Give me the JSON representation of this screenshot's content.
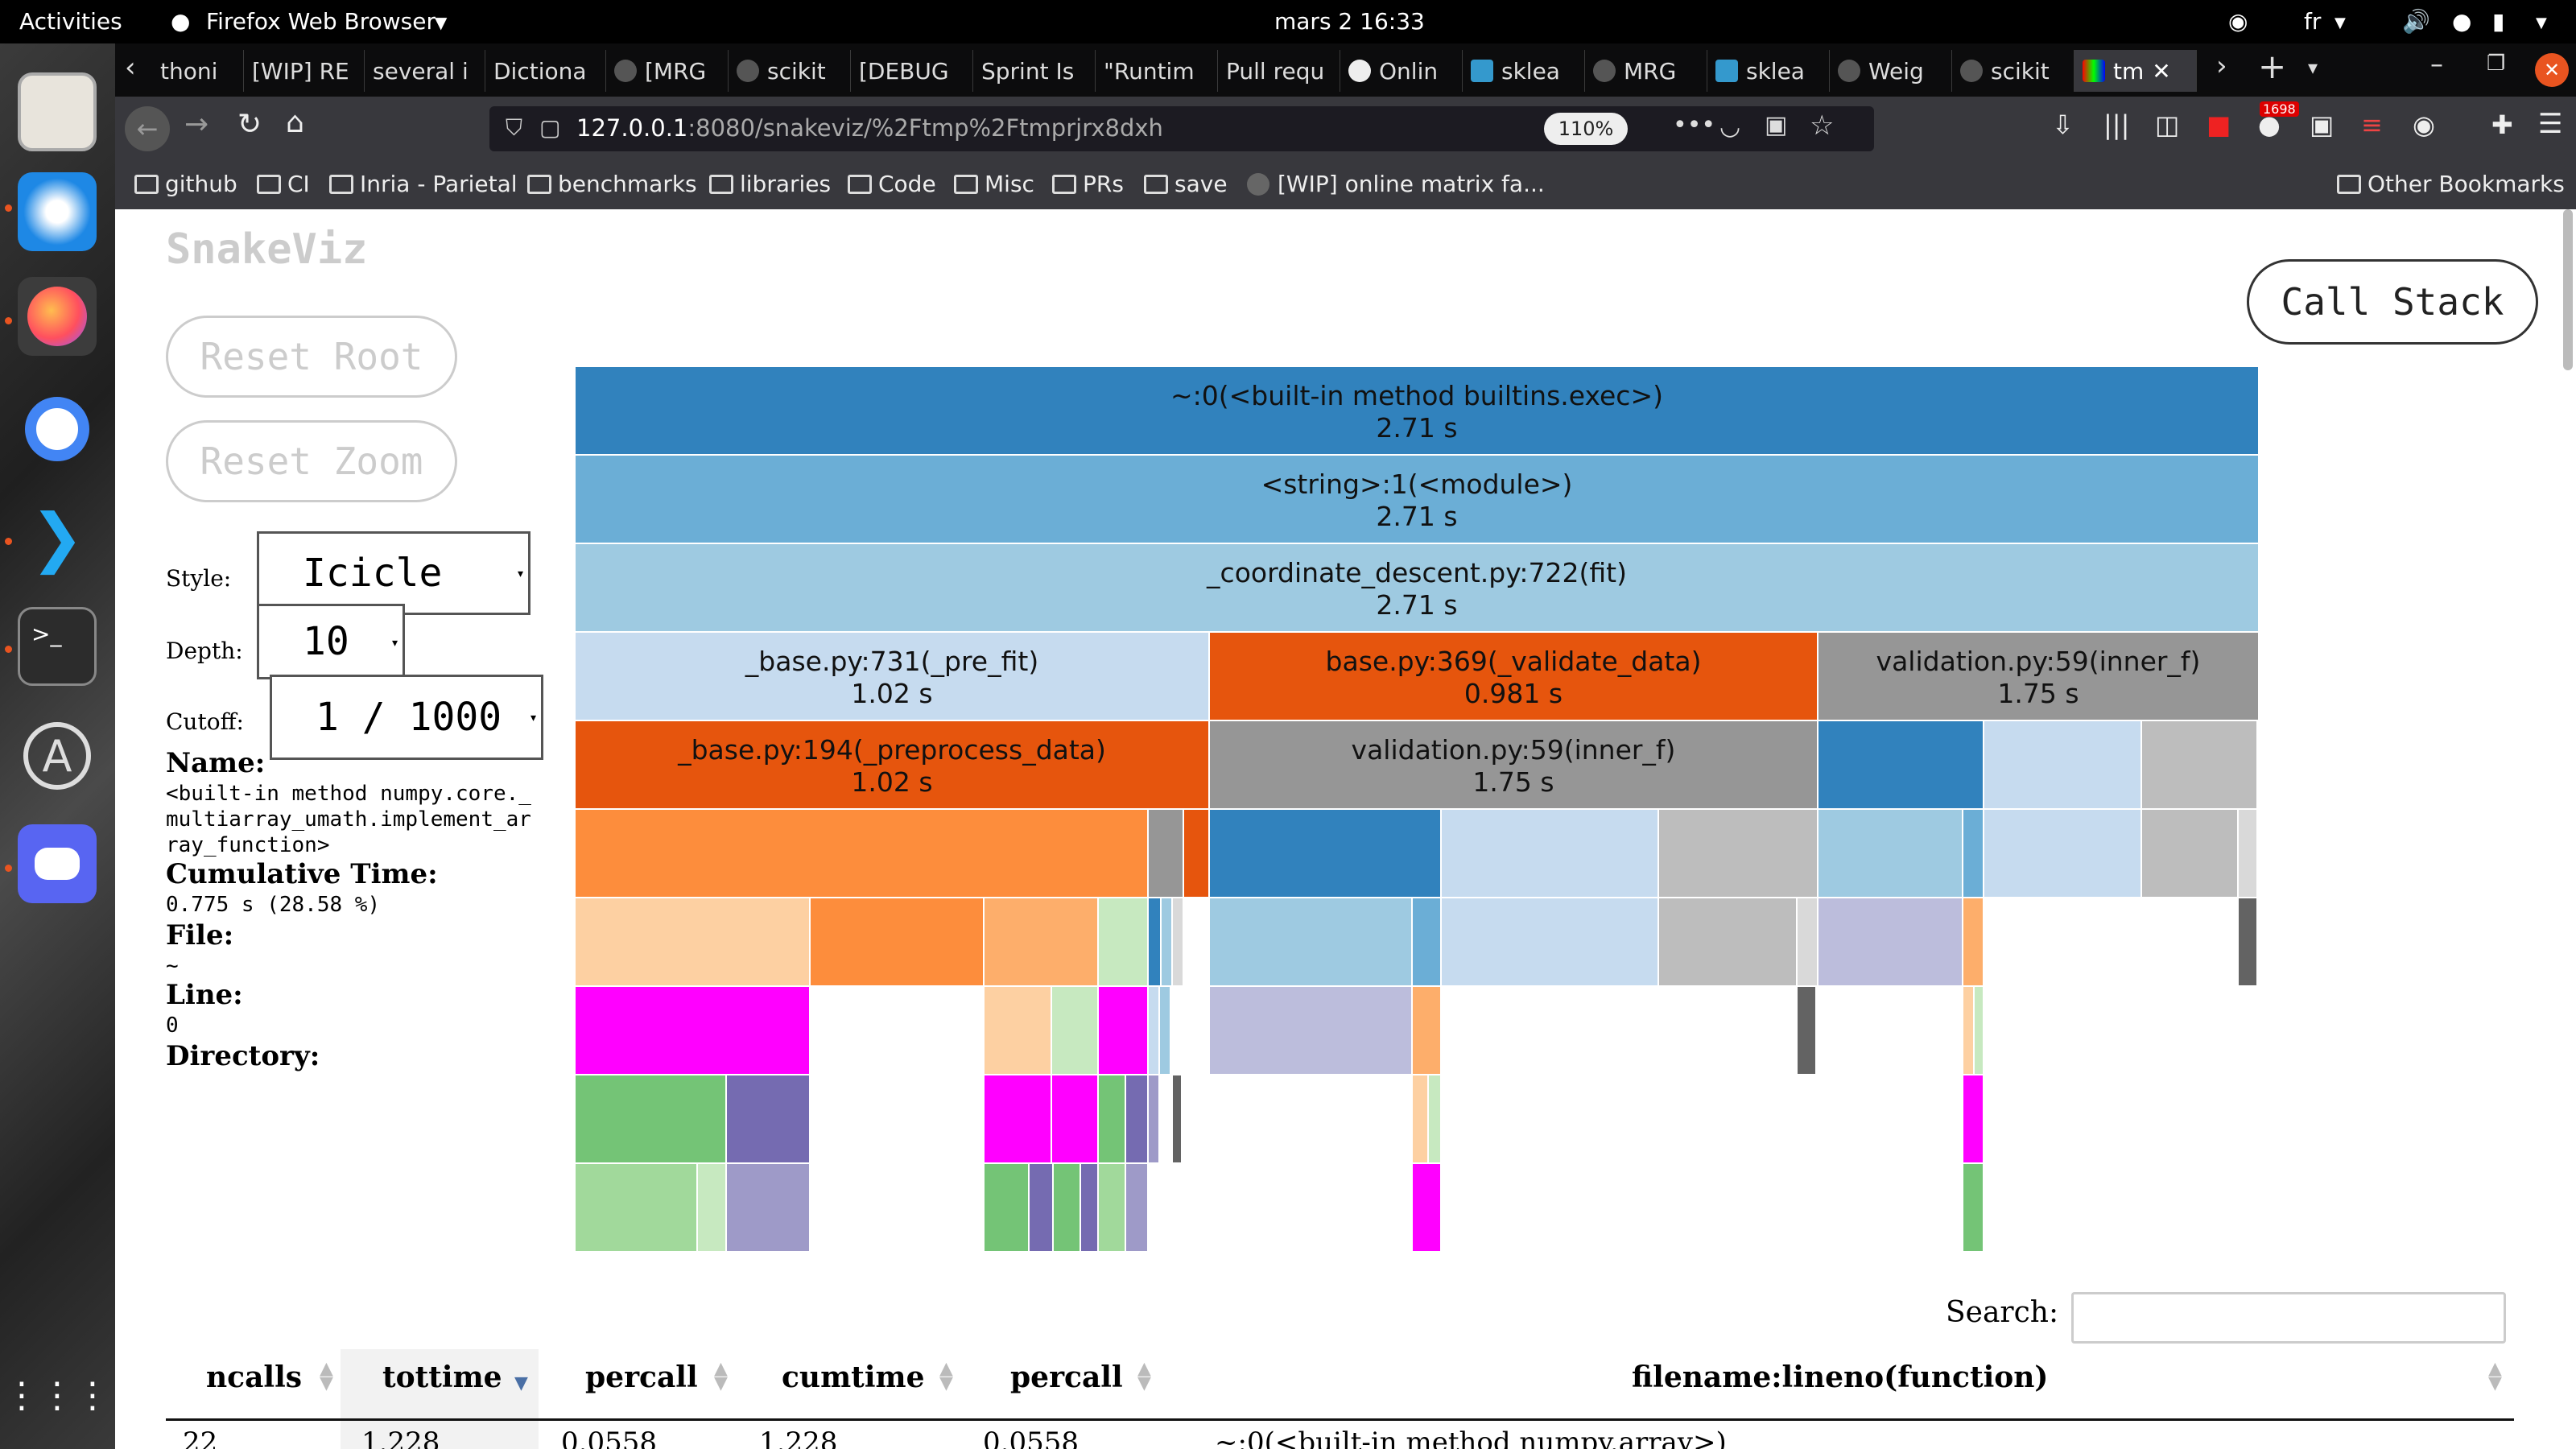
{
  "topbar": {
    "activities": "Activities",
    "app_name": "Firefox Web Browser",
    "clock": "mars 2  16:33",
    "lang": "fr"
  },
  "tabs": [
    {
      "label": "thoni"
    },
    {
      "label": "[WIP] RE"
    },
    {
      "label": "several i"
    },
    {
      "label": "Dictiona"
    },
    {
      "label": "[MRG"
    },
    {
      "label": "scikit"
    },
    {
      "label": "[DEBUG"
    },
    {
      "label": "Sprint Is"
    },
    {
      "label": "\"Runtim"
    },
    {
      "label": "Pull requ"
    },
    {
      "label": "Onlin"
    },
    {
      "label": "sklea"
    },
    {
      "label": "MRG"
    },
    {
      "label": "sklea"
    },
    {
      "label": "Weig"
    },
    {
      "label": "scikit"
    },
    {
      "label": "tm"
    }
  ],
  "nav": {
    "url_host": "127.0.0.1",
    "url_rest": ":8080/snakeviz/%2Ftmp%2Ftmprjrx8dxh",
    "zoom": "110%",
    "badge": "1698"
  },
  "bookmarks": [
    "github",
    "CI",
    "Inria - Parietal",
    "benchmarks",
    "libraries",
    "Code",
    "Misc",
    "PRs",
    "save",
    "[WIP] online matrix fa..."
  ],
  "other_bookmarks": "Other Bookmarks",
  "snakeviz": {
    "title": "SnakeViz",
    "reset_root": "Reset Root",
    "reset_zoom": "Reset Zoom",
    "call_stack": "Call Stack",
    "style_label": "Style:",
    "style_value": "Icicle",
    "depth_label": "Depth:",
    "depth_value": "10",
    "cutoff_label": "Cutoff:",
    "cutoff_value": "1 / 1000",
    "info": {
      "name_label": "Name:",
      "name_value": "<built-in method numpy.core._multiarray_umath.implement_array_function>",
      "cumtime_label": "Cumulative Time:",
      "cumtime_value": "0.775 s (28.58 %)",
      "file_label": "File:",
      "file_value": "~",
      "line_label": "Line:",
      "line_value": "0",
      "dir_label": "Directory:"
    },
    "icicle_labeled": [
      {
        "name": "~:0(<built-in method builtins.exec>)",
        "time": "2.71 s"
      },
      {
        "name": "<string>:1(<module>)",
        "time": "2.71 s"
      },
      {
        "name": "_coordinate_descent.py:722(fit)",
        "time": "2.71 s"
      },
      {
        "name": "_base.py:731(_pre_fit)",
        "time": "1.02 s"
      },
      {
        "name": "base.py:369(_validate_data)",
        "time": "0.981 s"
      },
      {
        "name": "validation.py:59(inner_f)",
        "time": "1.75 s"
      },
      {
        "name": "_base.py:194(_preprocess_data)",
        "time": "1.02 s"
      },
      {
        "name": "validation.py:59(inner_f)",
        "time": "1.75 s"
      }
    ],
    "search_label": "Search:",
    "table": {
      "headers": [
        "ncalls",
        "tottime",
        "percall",
        "cumtime",
        "percall",
        "filename:lineno(function)"
      ],
      "first_row": [
        "22",
        "1.228",
        "0.0558",
        "1.228",
        "0.0558",
        "~:0(<built-in method numpy.array>)"
      ]
    }
  },
  "colors": {
    "blue_dark": "#3182bd",
    "blue_mid": "#6baed6",
    "blue_light": "#9ecae1",
    "blue_pale": "#c6dbef",
    "orange_dark": "#e6550d",
    "orange_mid": "#fd8d3c",
    "orange_light": "#fdae6b",
    "orange_pale": "#fdd0a2",
    "grey_dark": "#636363",
    "grey_mid": "#969696",
    "grey_light": "#bdbdbd",
    "green_mid": "#74c476",
    "green_light": "#a1d99b",
    "green_pale": "#c7e9c0",
    "purple_dark": "#756bb1",
    "purple_mid": "#9e9ac8",
    "purple_light": "#bcbddc",
    "magenta": "#ff00ff"
  }
}
